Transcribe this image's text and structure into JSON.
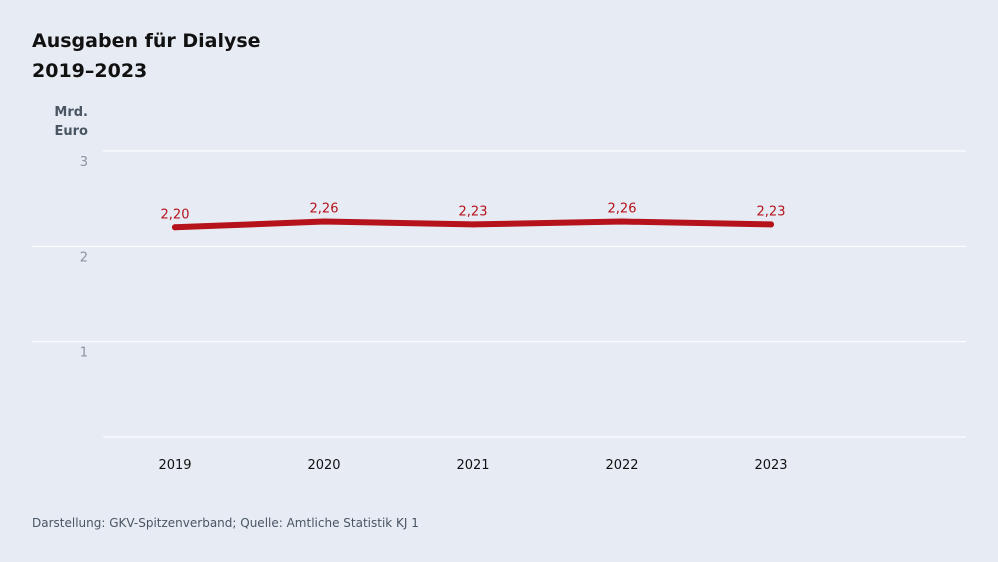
{
  "chart_data": {
    "type": "line",
    "title": [
      "Ausgaben für Dialyse",
      "2019–2023"
    ],
    "ylabel": [
      "Mrd.",
      "Euro"
    ],
    "xlabel": "",
    "categories": [
      "2019",
      "2020",
      "2021",
      "2022",
      "2023"
    ],
    "series": [
      {
        "values": [
          2.2,
          2.26,
          2.23,
          2.26,
          2.23
        ],
        "labels": [
          "2,20",
          "2,26",
          "2,23",
          "2,26",
          "2,23"
        ],
        "color": "#b5121b"
      }
    ],
    "yticks": [
      1,
      2,
      3
    ],
    "ylim": [
      0,
      3
    ],
    "grid": true,
    "legend": "none",
    "source": "Darstellung: GKV-Spitzenverband; Quelle: Amtliche Statistik KJ 1"
  },
  "colors": {
    "background": "#e7ecf4",
    "gridline": "#ffffff",
    "axis_text": "#8a93a0",
    "line": "#b5121b"
  }
}
